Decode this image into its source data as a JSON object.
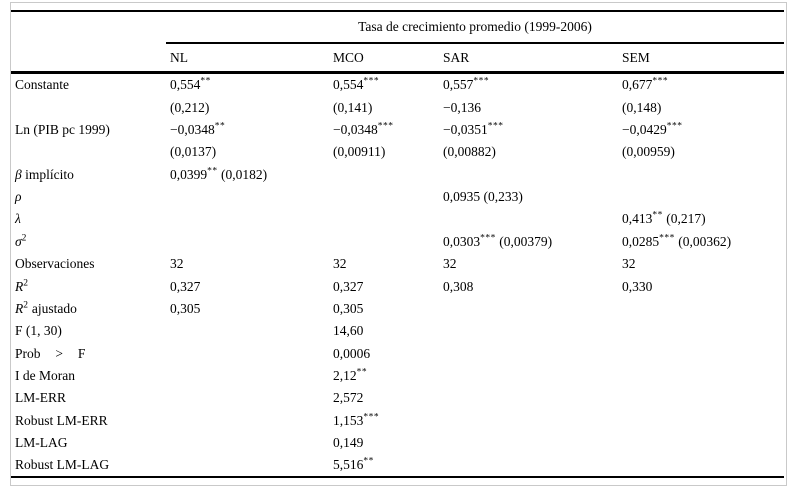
{
  "table": {
    "group_header": "Tasa de crecimiento promedio (1999-2006)",
    "columns": [
      "NL",
      "MCO",
      "SAR",
      "SEM"
    ],
    "rows": [
      {
        "label": "Constante",
        "cells": [
          "0,554^{**}",
          "0,554^{***}",
          "0,557^{***}",
          "0,677^{***}"
        ]
      },
      {
        "label": "",
        "cells": [
          "(0,212)",
          "(0,141)",
          "−0,136",
          "(0,148)"
        ]
      },
      {
        "label": "Ln (PIB pc 1999)",
        "cells": [
          "−0,0348^{**}",
          "−0,0348^{***}",
          "−0,0351^{***}",
          "−0,0429^{***}"
        ]
      },
      {
        "label": "",
        "cells": [
          "(0,0137)",
          "(0,00911)",
          "(0,00882)",
          "(0,00959)"
        ]
      },
      {
        "label": "~β~ implícito",
        "cells": [
          "0,0399^{**} (0,0182)",
          "",
          "",
          ""
        ]
      },
      {
        "label": "~ρ~",
        "cells": [
          "",
          "",
          "0,0935 (0,233)",
          ""
        ]
      },
      {
        "label": "~λ~",
        "cells": [
          "",
          "",
          "",
          "0,413^{**} (0,217)"
        ]
      },
      {
        "label": "~σ~^{2}",
        "cells": [
          "",
          "",
          "0,0303^{***} (0,00379)",
          "0,0285^{***} (0,00362)"
        ]
      },
      {
        "label": "Observaciones",
        "cells": [
          "32",
          "32",
          "32",
          "32"
        ]
      },
      {
        "label": "~R~^{2}",
        "cells": [
          "0,327",
          "0,327",
          "0,308",
          "0,330"
        ]
      },
      {
        "label": "~R~^{2} ajustado",
        "cells": [
          "0,305",
          "0,305",
          "",
          ""
        ]
      },
      {
        "label": "F (1, 30)",
        "cells": [
          "",
          "14,60",
          "",
          ""
        ]
      },
      {
        "label": "Prob > F",
        "cells": [
          "",
          "0,0006",
          "",
          ""
        ]
      },
      {
        "label": "I de Moran",
        "cells": [
          "",
          "2,12^{**}",
          "",
          ""
        ]
      },
      {
        "label": "LM-ERR",
        "cells": [
          "",
          "2,572",
          "",
          ""
        ]
      },
      {
        "label": "Robust LM-ERR",
        "cells": [
          "",
          "1,153^{***}",
          "",
          ""
        ]
      },
      {
        "label": "LM-LAG",
        "cells": [
          "",
          "0,149",
          "",
          ""
        ]
      },
      {
        "label": "Robust LM-LAG",
        "cells": [
          "",
          "5,516^{**}",
          "",
          ""
        ]
      }
    ]
  }
}
